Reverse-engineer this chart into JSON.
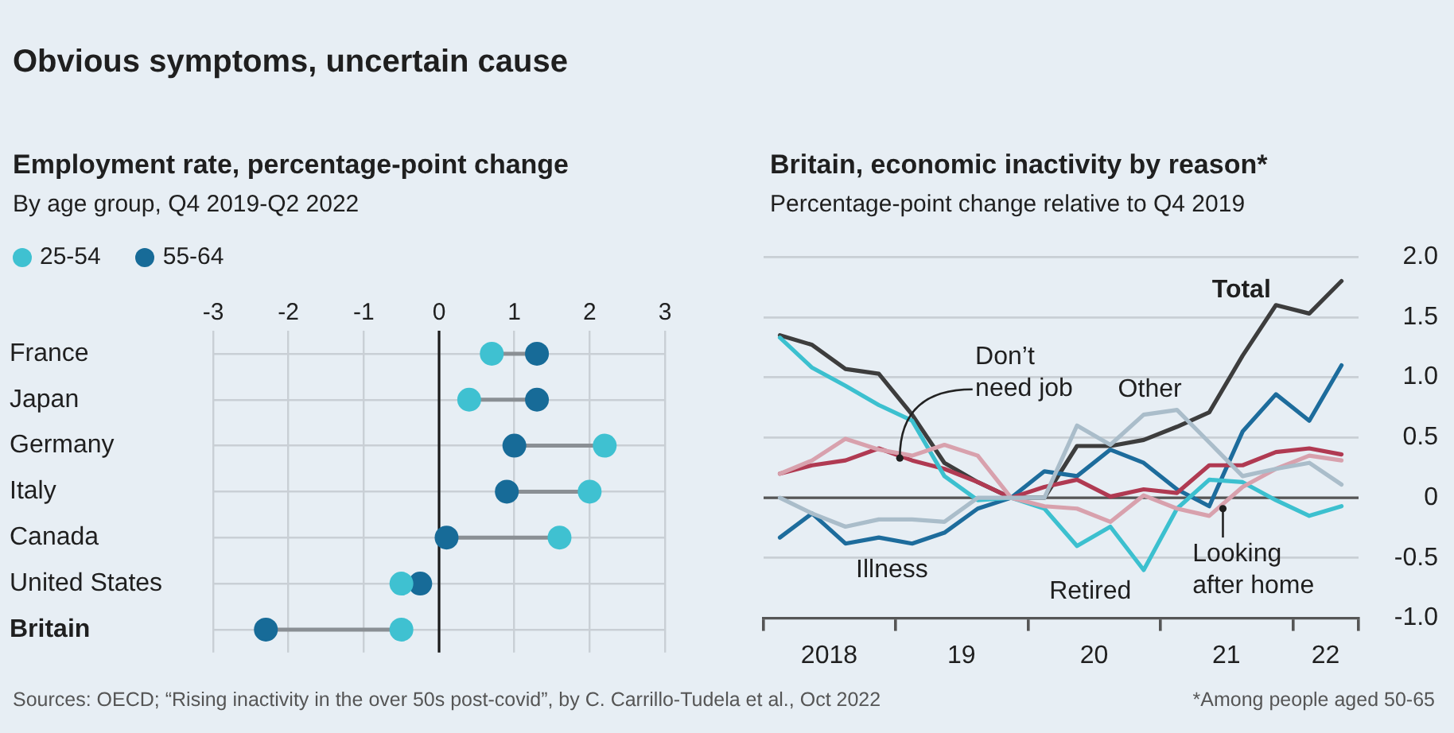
{
  "chart_data": [
    {
      "type": "scatter",
      "title": "Employment rate, percentage-point change",
      "subtitle": "By age group, Q4 2019-Q2 2022",
      "orientation": "horizontal",
      "marker": "circle",
      "grid": true,
      "legend": "top left",
      "annotations": [
        "Obvious symptoms, uncertain cause",
        "Sources: OECD; “Rising inactivity in the over 50s post-covid”, by C. Carrillo-Tudela et al., Oct 2022"
      ],
      "categories": [
        "France",
        "Japan",
        "Germany",
        "Italy",
        "Canada",
        "United States",
        "Britain"
      ],
      "xlim": [
        -3,
        3
      ],
      "xticks": [
        -3,
        -2,
        -1,
        0,
        1,
        2,
        3
      ],
      "ref_lines": [
        {
          "axis": "x",
          "value": 0,
          "color": "#1a1a1a"
        }
      ],
      "series": [
        {
          "name": "25-54",
          "color": "#3fc1d1",
          "values": [
            0.7,
            0.4,
            2.2,
            2.0,
            1.6,
            -0.5,
            -0.5
          ]
        },
        {
          "name": "55-64",
          "color": "#176b98",
          "values": [
            1.3,
            1.3,
            1.0,
            0.9,
            0.1,
            -0.25,
            -2.3
          ]
        }
      ]
    },
    {
      "type": "line",
      "title": "Britain, economic inactivity by reason*",
      "subtitle": "Percentage-point change relative to Q4 2019",
      "grid": "y",
      "legend": false,
      "line_style": "solid",
      "marker": "none",
      "annotations": [
        "*Among people aged 50-65"
      ],
      "x": [
        "2018-02-15",
        "2018-05-15",
        "2018-08-15",
        "2018-11-15",
        "2019-02-15",
        "2019-05-15",
        "2019-08-15",
        "2019-11-15",
        "2020-02-15",
        "2020-05-15",
        "2020-08-15",
        "2020-11-15",
        "2021-02-15",
        "2021-05-15",
        "2021-08-15",
        "2021-11-15",
        "2022-02-15",
        "2022-05-15"
      ],
      "xlim": [
        "2018-01-01",
        "2022-07-01"
      ],
      "xticks": [
        {
          "value": "2018-01-01",
          "label": null
        },
        {
          "value": "2018-07-01",
          "label": "2018"
        },
        {
          "value": "2019-01-01",
          "label": null
        },
        {
          "value": "2019-07-01",
          "label": "19"
        },
        {
          "value": "2020-01-01",
          "label": null
        },
        {
          "value": "2020-07-01",
          "label": "20"
        },
        {
          "value": "2021-01-01",
          "label": null
        },
        {
          "value": "2021-07-01",
          "label": "21"
        },
        {
          "value": "2022-01-01",
          "label": null
        },
        {
          "value": "2022-04-01",
          "label": "22"
        },
        {
          "value": "2022-07-01",
          "label": null
        }
      ],
      "ylim": [
        -1,
        2
      ],
      "yticks": [
        {
          "value": -1,
          "label": "-1.0"
        },
        -0.5,
        0,
        0.5,
        {
          "value": 1,
          "label": "1.0"
        },
        1.5,
        {
          "value": 2,
          "label": "2.0"
        }
      ],
      "ref_lines": [
        {
          "axis": "y",
          "value": 0,
          "color": "#555555"
        }
      ],
      "series": [
        {
          "name": "Total",
          "color": "#3d3d3d",
          "values": [
            1.35,
            1.27,
            1.07,
            1.03,
            0.69,
            0.29,
            0.13,
            0,
            0,
            0.43,
            0.43,
            0.48,
            0.59,
            0.71,
            1.18,
            1.6,
            1.53,
            1.8
          ]
        },
        {
          "name": "Illness",
          "color": "#1d6c9c",
          "values": [
            -0.33,
            -0.13,
            -0.38,
            -0.33,
            -0.38,
            -0.29,
            -0.09,
            0,
            0.22,
            0.18,
            0.4,
            0.29,
            0.07,
            -0.07,
            0.55,
            0.86,
            0.64,
            1.1
          ]
        },
        {
          "name": "Don’t need job",
          "color": "#b03a52",
          "values": [
            0.2,
            0.27,
            0.31,
            0.41,
            0.31,
            0.24,
            0.13,
            0,
            0.09,
            0.15,
            0.01,
            0.07,
            0.04,
            0.27,
            0.27,
            0.38,
            0.41,
            0.36
          ]
        },
        {
          "name": "Retired",
          "color": "#3cc0cf",
          "values": [
            1.33,
            1.08,
            0.93,
            0.77,
            0.64,
            0.18,
            -0.02,
            0,
            -0.09,
            -0.4,
            -0.24,
            -0.6,
            -0.09,
            0.15,
            0.13,
            -0.02,
            -0.15,
            -0.07
          ]
        },
        {
          "name": "Looking after home",
          "color": "#d8a1ad",
          "values": [
            0.2,
            0.31,
            0.49,
            0.4,
            0.35,
            0.44,
            0.35,
            0,
            -0.07,
            -0.09,
            -0.2,
            0.02,
            -0.09,
            -0.15,
            0.09,
            0.24,
            0.35,
            0.31
          ]
        },
        {
          "name": "Other",
          "color": "#aabdca",
          "values": [
            0,
            -0.13,
            -0.24,
            -0.18,
            -0.18,
            -0.2,
            0,
            0,
            0,
            0.6,
            0.44,
            0.69,
            0.73,
            0.46,
            0.18,
            0.24,
            0.29,
            0.11
          ]
        }
      ]
    }
  ]
}
